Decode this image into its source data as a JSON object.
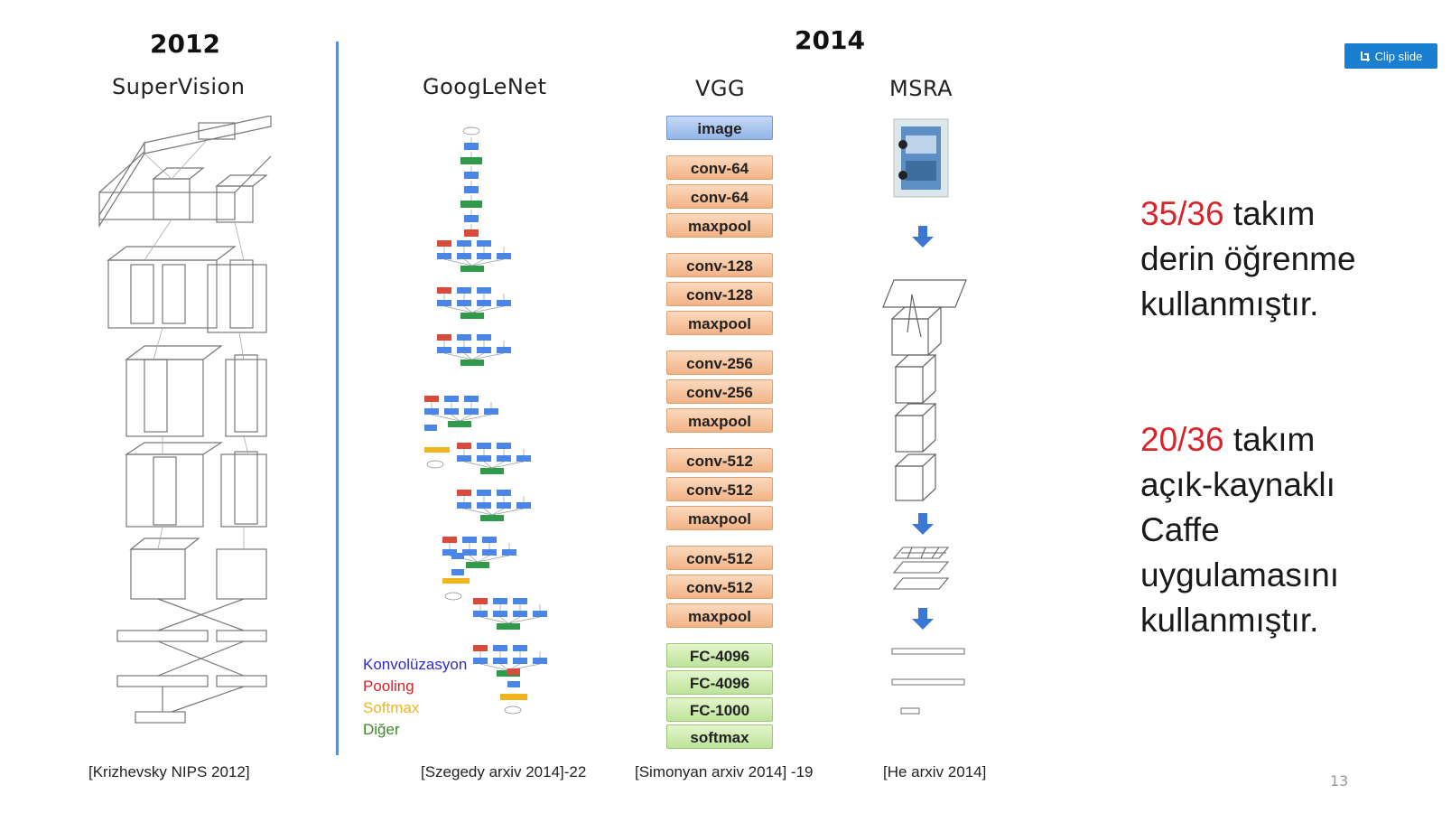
{
  "years": {
    "left": "2012",
    "right": "2014"
  },
  "columns": {
    "supervision": "SuperVision",
    "googlenet": "GoogLeNet",
    "vgg": "VGG",
    "msra": "MSRA"
  },
  "vgg_layers": [
    {
      "label": "image",
      "kind": "image"
    },
    {
      "label": "conv-64",
      "kind": "conv"
    },
    {
      "label": "conv-64",
      "kind": "conv"
    },
    {
      "label": "maxpool",
      "kind": "pool"
    },
    {
      "label": "conv-128",
      "kind": "conv"
    },
    {
      "label": "conv-128",
      "kind": "conv"
    },
    {
      "label": "maxpool",
      "kind": "pool"
    },
    {
      "label": "conv-256",
      "kind": "conv"
    },
    {
      "label": "conv-256",
      "kind": "conv"
    },
    {
      "label": "maxpool",
      "kind": "pool"
    },
    {
      "label": "conv-512",
      "kind": "conv"
    },
    {
      "label": "conv-512",
      "kind": "conv"
    },
    {
      "label": "maxpool",
      "kind": "pool"
    },
    {
      "label": "conv-512",
      "kind": "conv"
    },
    {
      "label": "conv-512",
      "kind": "conv"
    },
    {
      "label": "maxpool",
      "kind": "pool"
    },
    {
      "label": "FC-4096",
      "kind": "fc"
    },
    {
      "label": "FC-4096",
      "kind": "fc"
    },
    {
      "label": "FC-1000",
      "kind": "fc"
    },
    {
      "label": "softmax",
      "kind": "fc"
    }
  ],
  "legend": [
    {
      "label": "Konvolüzasyon",
      "color": "#2b2bd6"
    },
    {
      "label": "Pooling",
      "color": "#d9242b"
    },
    {
      "label": "Softmax",
      "color": "#f0b41e"
    },
    {
      "label": "Diğer",
      "color": "#3a8a2a"
    }
  ],
  "citations": {
    "krizhevsky": "[Krizhevsky NIPS 2012]",
    "szegedy": "[Szegedy arxiv 2014]-22",
    "simonyan": "[Simonyan arxiv 2014] -19",
    "he": "[He arxiv 2014]"
  },
  "stats": {
    "first": {
      "highlight": "35/36",
      "line1_rest": " takım",
      "line2": "derin öğrenme",
      "line3": "kullanmıştır."
    },
    "second": {
      "highlight": "20/36",
      "line1_rest": " takım",
      "line2": "açık-kaynaklı",
      "line3": "Caffe",
      "line4": "uygulamasını",
      "line5": "kullanmıştır."
    }
  },
  "clip_button": "Clip slide",
  "page_number": "13",
  "colors": {
    "conv": "#4a86e8",
    "pool": "#d94a3a",
    "softmax": "#f0b41e",
    "other": "#2e9a4a",
    "divider": "#5b8fd0"
  }
}
